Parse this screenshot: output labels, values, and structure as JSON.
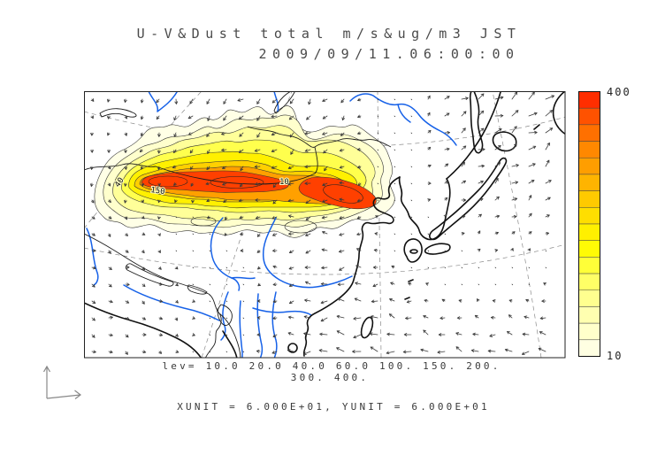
{
  "figure": {
    "title_line1": "U-V&Dust total m/s&ug/m3 JST",
    "title_line2": "2009/09/11.06:00:00",
    "lev_line1": "lev= 10.0 20.0 40.0 60.0 100. 150. 200.",
    "lev_line2": "300. 400.",
    "units_line": "XUNIT = 6.000E+01, YUNIT = 6.000E+01"
  },
  "colorbar": {
    "top_label": "400",
    "bottom_label": "10",
    "segment_colors": [
      "#FF2E00",
      "#FF5200",
      "#FF7000",
      "#FF8800",
      "#FF9E00",
      "#FFB400",
      "#FFCA00",
      "#FFDE00",
      "#FFF000",
      "#FFFB05",
      "#FFFF38",
      "#FFFF66",
      "#FFFF8F",
      "#FFFFB0",
      "#FFFFCB",
      "#FFFFE2"
    ]
  },
  "contour_labels": {
    "a": "40",
    "b": "150",
    "c": "10"
  },
  "chart_data": {
    "type": "heatmap",
    "subtype": "filled-contour map with wind vector field",
    "title": "U-V&Dust total m/s&ug/m3 JST",
    "timestamp": "2009/09/11.06:00:00",
    "contour_levels": [
      10.0,
      20.0,
      40.0,
      60.0,
      100,
      150,
      200,
      300,
      400
    ],
    "colorbar": {
      "min": 10,
      "max": 400,
      "orientation": "vertical",
      "position": "right"
    },
    "xunit": "6.000E+01",
    "yunit": "6.000E+01",
    "field_description_from_pixels": "Elongated dust plume (values up to 400 ug/m3, red core) stretching east-west across the north-west of the mapped domain; wind vectors southward north of the plume, westward within it, eastward/north-eastward over the north-east ocean, westward over the southern ocean"
  }
}
